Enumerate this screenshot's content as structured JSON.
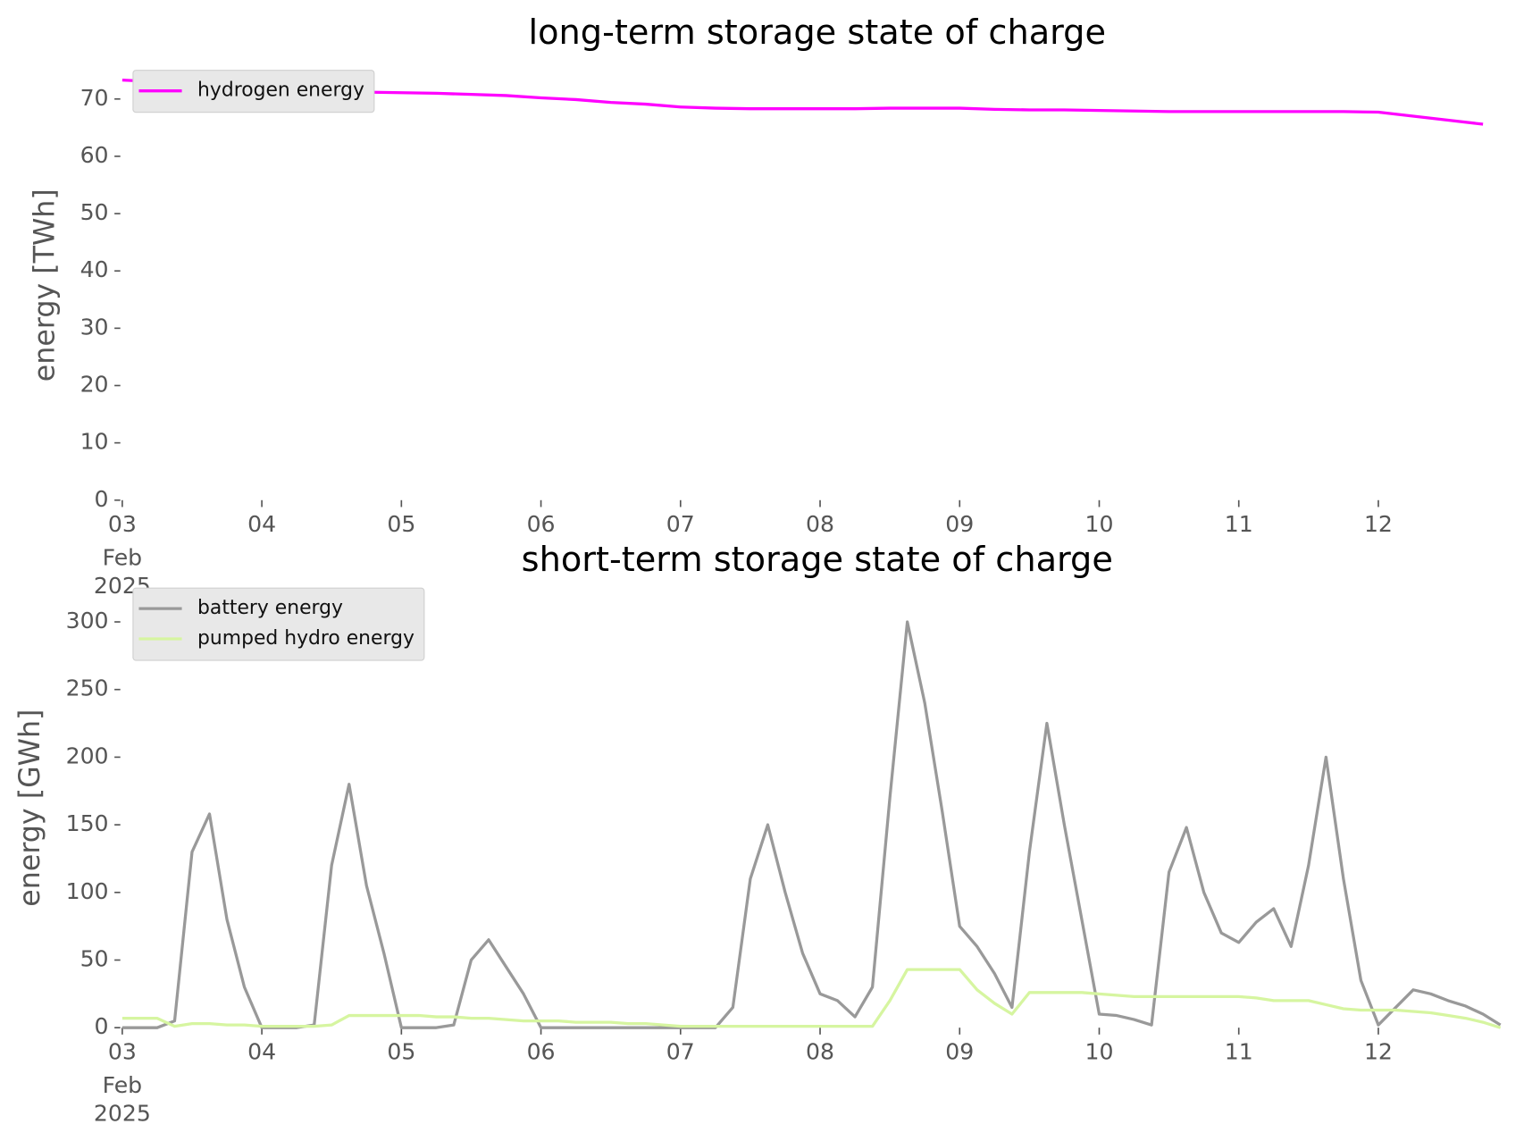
{
  "chart_data": [
    {
      "type": "line",
      "title": "long-term storage state of charge",
      "ylabel": "energy [TWh]",
      "x": [
        "2025-02-03T00:00",
        "2025-02-03T06:00",
        "2025-02-03T12:00",
        "2025-02-03T18:00",
        "2025-02-04T00:00",
        "2025-02-04T06:00",
        "2025-02-04T12:00",
        "2025-02-04T18:00",
        "2025-02-05T00:00",
        "2025-02-05T06:00",
        "2025-02-05T12:00",
        "2025-02-05T18:00",
        "2025-02-06T00:00",
        "2025-02-06T06:00",
        "2025-02-06T12:00",
        "2025-02-06T18:00",
        "2025-02-07T00:00",
        "2025-02-07T06:00",
        "2025-02-07T12:00",
        "2025-02-07T18:00",
        "2025-02-08T00:00",
        "2025-02-08T06:00",
        "2025-02-08T12:00",
        "2025-02-08T18:00",
        "2025-02-09T00:00",
        "2025-02-09T06:00",
        "2025-02-09T12:00",
        "2025-02-09T18:00",
        "2025-02-10T00:00",
        "2025-02-10T06:00",
        "2025-02-10T12:00",
        "2025-02-10T18:00",
        "2025-02-11T00:00",
        "2025-02-11T06:00",
        "2025-02-11T12:00",
        "2025-02-11T18:00",
        "2025-02-12T00:00",
        "2025-02-12T06:00",
        "2025-02-12T12:00",
        "2025-02-12T18:00"
      ],
      "series": [
        {
          "name": "hydrogen energy",
          "color": "#ff00ff",
          "values": [
            73.3,
            73.0,
            72.6,
            72.2,
            71.9,
            71.6,
            71.4,
            71.2,
            71.1,
            71.0,
            70.8,
            70.6,
            70.2,
            69.9,
            69.4,
            69.1,
            68.6,
            68.4,
            68.3,
            68.3,
            68.3,
            68.3,
            68.4,
            68.4,
            68.4,
            68.2,
            68.1,
            68.1,
            68.0,
            67.9,
            67.8,
            67.8,
            67.8,
            67.8,
            67.8,
            67.8,
            67.7,
            67.0,
            66.3,
            65.6
          ]
        }
      ],
      "xlim": [
        "2025-02-03T00:00",
        "2025-02-12T23:00"
      ],
      "xticks": [
        {
          "value": "2025-02-03T00:00",
          "label": "03"
        },
        {
          "value": "2025-02-04T00:00",
          "label": "04"
        },
        {
          "value": "2025-02-05T00:00",
          "label": "05"
        },
        {
          "value": "2025-02-06T00:00",
          "label": "06"
        },
        {
          "value": "2025-02-07T00:00",
          "label": "07"
        },
        {
          "value": "2025-02-08T00:00",
          "label": "08"
        },
        {
          "value": "2025-02-09T00:00",
          "label": "09"
        },
        {
          "value": "2025-02-10T00:00",
          "label": "10"
        },
        {
          "value": "2025-02-11T00:00",
          "label": "11"
        },
        {
          "value": "2025-02-12T00:00",
          "label": "12"
        }
      ],
      "x_tick_sublabels": [
        "Feb",
        "2025"
      ],
      "ylim": [
        0,
        75
      ],
      "yticks": [
        0,
        10,
        20,
        30,
        40,
        50,
        60,
        70
      ],
      "legend": "upper left"
    },
    {
      "type": "line",
      "title": "short-term storage state of charge",
      "ylabel": "energy [GWh]",
      "x": [
        "2025-02-03T00:00",
        "2025-02-03T03:00",
        "2025-02-03T06:00",
        "2025-02-03T09:00",
        "2025-02-03T12:00",
        "2025-02-03T15:00",
        "2025-02-03T18:00",
        "2025-02-03T21:00",
        "2025-02-04T00:00",
        "2025-02-04T03:00",
        "2025-02-04T06:00",
        "2025-02-04T09:00",
        "2025-02-04T12:00",
        "2025-02-04T15:00",
        "2025-02-04T18:00",
        "2025-02-04T21:00",
        "2025-02-05T00:00",
        "2025-02-05T03:00",
        "2025-02-05T06:00",
        "2025-02-05T09:00",
        "2025-02-05T12:00",
        "2025-02-05T15:00",
        "2025-02-05T18:00",
        "2025-02-05T21:00",
        "2025-02-06T00:00",
        "2025-02-06T03:00",
        "2025-02-06T06:00",
        "2025-02-06T09:00",
        "2025-02-06T12:00",
        "2025-02-06T15:00",
        "2025-02-06T18:00",
        "2025-02-06T21:00",
        "2025-02-07T00:00",
        "2025-02-07T03:00",
        "2025-02-07T06:00",
        "2025-02-07T09:00",
        "2025-02-07T12:00",
        "2025-02-07T15:00",
        "2025-02-07T18:00",
        "2025-02-07T21:00",
        "2025-02-08T00:00",
        "2025-02-08T03:00",
        "2025-02-08T06:00",
        "2025-02-08T09:00",
        "2025-02-08T12:00",
        "2025-02-08T15:00",
        "2025-02-08T18:00",
        "2025-02-08T21:00",
        "2025-02-09T00:00",
        "2025-02-09T03:00",
        "2025-02-09T06:00",
        "2025-02-09T09:00",
        "2025-02-09T12:00",
        "2025-02-09T15:00",
        "2025-02-09T18:00",
        "2025-02-09T21:00",
        "2025-02-10T00:00",
        "2025-02-10T03:00",
        "2025-02-10T06:00",
        "2025-02-10T09:00",
        "2025-02-10T12:00",
        "2025-02-10T15:00",
        "2025-02-10T18:00",
        "2025-02-10T21:00",
        "2025-02-11T00:00",
        "2025-02-11T03:00",
        "2025-02-11T06:00",
        "2025-02-11T09:00",
        "2025-02-11T12:00",
        "2025-02-11T15:00",
        "2025-02-11T18:00",
        "2025-02-11T21:00",
        "2025-02-12T00:00",
        "2025-02-12T03:00",
        "2025-02-12T06:00",
        "2025-02-12T09:00",
        "2025-02-12T12:00",
        "2025-02-12T15:00",
        "2025-02-12T18:00",
        "2025-02-12T21:00"
      ],
      "series": [
        {
          "name": "battery energy",
          "color": "#999999",
          "values": [
            0,
            0,
            0,
            5,
            130,
            158,
            80,
            30,
            0,
            0,
            0,
            2,
            120,
            180,
            105,
            55,
            0,
            0,
            0,
            2,
            50,
            65,
            45,
            25,
            0,
            0,
            0,
            0,
            0,
            0,
            0,
            0,
            0,
            0,
            0,
            15,
            110,
            150,
            100,
            55,
            25,
            20,
            8,
            30,
            170,
            300,
            240,
            160,
            75,
            60,
            40,
            15,
            130,
            225,
            150,
            80,
            10,
            9,
            6,
            2,
            115,
            148,
            100,
            70,
            63,
            78,
            88,
            60,
            120,
            200,
            110,
            35,
            2,
            15,
            28,
            25,
            20,
            16,
            10,
            2
          ]
        },
        {
          "name": "pumped hydro energy",
          "color": "#d6f5a0",
          "values": [
            7,
            7,
            7,
            1,
            3,
            3,
            2,
            2,
            1,
            1,
            1,
            1,
            2,
            9,
            9,
            9,
            9,
            9,
            8,
            8,
            7,
            7,
            6,
            5,
            5,
            5,
            4,
            4,
            4,
            3,
            3,
            2,
            1,
            1,
            1,
            1,
            1,
            1,
            1,
            1,
            1,
            1,
            1,
            1,
            20,
            43,
            43,
            43,
            43,
            28,
            18,
            10,
            26,
            26,
            26,
            26,
            25,
            24,
            23,
            23,
            23,
            23,
            23,
            23,
            23,
            22,
            20,
            20,
            20,
            17,
            14,
            13,
            13,
            13,
            12,
            11,
            9,
            7,
            4,
            0
          ]
        }
      ],
      "xlim": [
        "2025-02-03T00:00",
        "2025-02-12T23:00"
      ],
      "xticks": [
        {
          "value": "2025-02-03T00:00",
          "label": "03"
        },
        {
          "value": "2025-02-04T00:00",
          "label": "04"
        },
        {
          "value": "2025-02-05T00:00",
          "label": "05"
        },
        {
          "value": "2025-02-06T00:00",
          "label": "06"
        },
        {
          "value": "2025-02-07T00:00",
          "label": "07"
        },
        {
          "value": "2025-02-08T00:00",
          "label": "08"
        },
        {
          "value": "2025-02-09T00:00",
          "label": "09"
        },
        {
          "value": "2025-02-10T00:00",
          "label": "10"
        },
        {
          "value": "2025-02-11T00:00",
          "label": "11"
        },
        {
          "value": "2025-02-12T00:00",
          "label": "12"
        }
      ],
      "x_tick_sublabels": [
        "Feb",
        "2025"
      ],
      "ylim": [
        0,
        325
      ],
      "yticks": [
        0,
        50,
        100,
        150,
        200,
        250,
        300
      ],
      "legend": "upper left"
    }
  ]
}
